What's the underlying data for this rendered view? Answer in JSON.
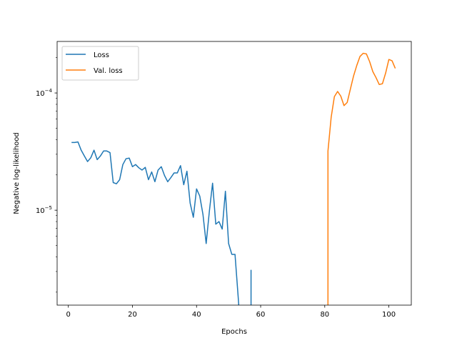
{
  "chart_data": {
    "type": "line",
    "title": "",
    "xlabel": "Epochs",
    "ylabel": "Negative log-likelihood",
    "xlim": [
      -3.5,
      107.0
    ],
    "ylim": [
      1.55e-06,
      0.000275
    ],
    "y_scale": "log",
    "grid": false,
    "legend_position": "top-left",
    "x_ticks": [
      0,
      20,
      40,
      60,
      80,
      100
    ],
    "y_ticks": [
      {
        "value": 1e-05,
        "base": "10",
        "exponent": "−5"
      },
      {
        "value": 0.0001,
        "base": "10",
        "exponent": "−4"
      }
    ],
    "series": [
      {
        "name": "Loss",
        "color": "#1f77b4",
        "points": [
          [
            1,
            3.78e-05
          ],
          [
            2,
            3.78e-05
          ],
          [
            3,
            3.82e-05
          ],
          [
            4,
            3.25e-05
          ],
          [
            5,
            2.9e-05
          ],
          [
            6,
            2.6e-05
          ],
          [
            7,
            2.8e-05
          ],
          [
            8,
            3.25e-05
          ],
          [
            9,
            2.7e-05
          ],
          [
            10,
            2.9e-05
          ],
          [
            11,
            3.2e-05
          ],
          [
            12,
            3.2e-05
          ],
          [
            13,
            3.1e-05
          ],
          [
            14,
            1.72e-05
          ],
          [
            15,
            1.68e-05
          ],
          [
            16,
            1.82e-05
          ],
          [
            17,
            2.45e-05
          ],
          [
            18,
            2.75e-05
          ],
          [
            19,
            2.78e-05
          ],
          [
            20,
            2.35e-05
          ],
          [
            21,
            2.45e-05
          ],
          [
            22,
            2.3e-05
          ],
          [
            23,
            2.2e-05
          ],
          [
            24,
            2.32e-05
          ],
          [
            25,
            1.82e-05
          ],
          [
            26,
            2.12e-05
          ],
          [
            27,
            1.75e-05
          ],
          [
            28,
            2.2e-05
          ],
          [
            29,
            2.35e-05
          ],
          [
            30,
            1.98e-05
          ],
          [
            31,
            1.75e-05
          ],
          [
            32,
            1.9e-05
          ],
          [
            33,
            2.08e-05
          ],
          [
            34,
            2.08e-05
          ],
          [
            35,
            2.4e-05
          ],
          [
            36,
            1.65e-05
          ],
          [
            37,
            2.15e-05
          ],
          [
            38,
            1.15e-05
          ],
          [
            39,
            8.7e-06
          ],
          [
            40,
            1.52e-05
          ],
          [
            41,
            1.32e-05
          ],
          [
            42,
            9.2e-06
          ],
          [
            43,
            5.2e-06
          ],
          [
            44,
            9.8e-06
          ],
          [
            45,
            1.7e-05
          ],
          [
            46,
            7.6e-06
          ],
          [
            47,
            8e-06
          ],
          [
            48,
            6.9e-06
          ],
          [
            49,
            1.45e-05
          ],
          [
            50,
            5.2e-06
          ],
          [
            51,
            4.2e-06
          ],
          [
            52,
            4.2e-06
          ],
          [
            53,
            1.8e-06
          ],
          [
            53.2,
            1.5e-06
          ]
        ],
        "extra_segments": [
          [
            [
              57,
              3.1e-06
            ],
            [
              57,
              1.5e-06
            ]
          ]
        ]
      },
      {
        "name": "Val. loss",
        "color": "#ff7f0e",
        "points": [
          [
            81,
            1.5e-06
          ],
          [
            81,
            3.2e-05
          ],
          [
            82,
            6.2e-05
          ],
          [
            83,
            9.3e-05
          ],
          [
            84,
            0.000103
          ],
          [
            85,
            9.4e-05
          ],
          [
            86,
            7.8e-05
          ],
          [
            87,
            8.3e-05
          ],
          [
            88,
            0.000108
          ],
          [
            89,
            0.00014
          ],
          [
            90,
            0.000172
          ],
          [
            91,
            0.000205
          ],
          [
            92,
            0.000218
          ],
          [
            93,
            0.000215
          ],
          [
            94,
            0.000185
          ],
          [
            95,
            0.000152
          ],
          [
            96,
            0.000135
          ],
          [
            97,
            0.000118
          ],
          [
            98,
            0.00012
          ],
          [
            99,
            0.000148
          ],
          [
            100,
            0.000193
          ],
          [
            101,
            0.000188
          ],
          [
            102,
            0.000162
          ]
        ],
        "extra_segments": []
      }
    ]
  }
}
